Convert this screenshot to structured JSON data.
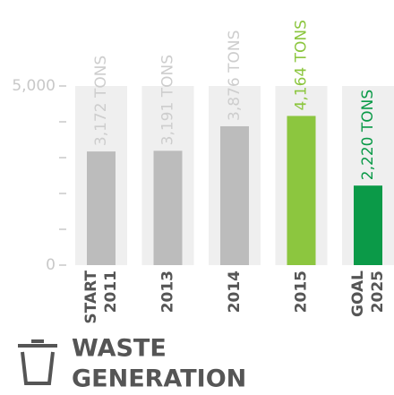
{
  "chart_data": {
    "type": "bar",
    "title": [
      "WASTE",
      "GENERATION"
    ],
    "categories": [
      [
        "START",
        "2011"
      ],
      "2013",
      "2014",
      "2015",
      [
        "GOAL",
        "2025"
      ]
    ],
    "values": [
      3172,
      3191,
      3876,
      4164,
      2220
    ],
    "value_labels": [
      "3,172 TONS",
      "3,191 TONS",
      "3,876 TONS",
      "4,164 TONS",
      "2,220 TONS"
    ],
    "colors": [
      "#bcbcbc",
      "#bcbcbc",
      "#bcbcbc",
      "#8cc63f",
      "#0b9a48"
    ],
    "label_colors": [
      "#cdcdcd",
      "#cdcdcd",
      "#cdcdcd",
      "#8cc63f",
      "#0b9a48"
    ],
    "ylim": [
      0,
      5000
    ],
    "yticks": [
      0,
      {
        "value": 5000,
        "label": "5,000"
      }
    ],
    "yminorticks": [
      1000,
      2000,
      3000,
      4000
    ]
  }
}
